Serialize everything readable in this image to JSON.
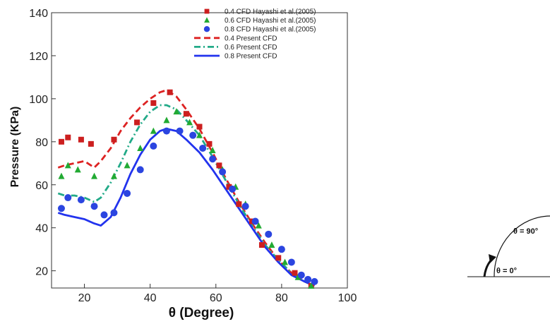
{
  "chart_data": {
    "type": "scatter",
    "xlabel": "θ (Degree)",
    "ylabel": "Pressure (KPa)",
    "xlim": [
      10,
      100
    ],
    "ylim": [
      12,
      140
    ],
    "xticks": [
      20,
      40,
      60,
      80,
      100
    ],
    "yticks": [
      20,
      40,
      60,
      80,
      100,
      120,
      140
    ],
    "grid": false,
    "legend_position": "top-right",
    "series": [
      {
        "name": "0.4 CFD Hayashi et al.(2005)",
        "kind": "markers",
        "marker": "square",
        "color": "#cc1f1f",
        "x": [
          13,
          15,
          19,
          22,
          29,
          36,
          41,
          46,
          51,
          55,
          58,
          61,
          64,
          67,
          71,
          74,
          79,
          84,
          89
        ],
        "y": [
          80,
          82,
          81,
          79,
          81,
          89,
          98,
          103,
          93,
          87,
          79,
          69,
          59,
          51,
          43,
          32,
          26,
          19,
          13
        ]
      },
      {
        "name": "0.6 CFD Hayashi et al.(2005)",
        "kind": "markers",
        "marker": "triangle",
        "color": "#22aa33",
        "x": [
          13,
          15,
          18,
          23,
          29,
          33,
          37,
          41,
          45,
          48,
          52,
          55,
          59,
          62,
          66,
          69,
          73,
          77,
          81,
          85,
          89
        ],
        "y": [
          64,
          69,
          67,
          64,
          64,
          69,
          77,
          85,
          90,
          94,
          89,
          83,
          76,
          67,
          59,
          51,
          41,
          32,
          24,
          17,
          13
        ]
      },
      {
        "name": "0.8 CFD Hayashi et al.(2005)",
        "kind": "markers",
        "marker": "circle",
        "color": "#2b45e0",
        "x": [
          13,
          15,
          19,
          23,
          26,
          29,
          33,
          37,
          41,
          45,
          49,
          53,
          56,
          59,
          62,
          65,
          69,
          72,
          76,
          80,
          83,
          86,
          88,
          90
        ],
        "y": [
          49,
          54,
          53,
          50,
          46,
          47,
          56,
          67,
          78,
          85,
          85,
          83,
          77,
          72,
          66,
          58,
          50,
          43,
          37,
          30,
          24,
          18,
          16,
          15
        ]
      },
      {
        "name": "0.4 Present CFD",
        "kind": "line",
        "dash": "dashed",
        "color": "#dd2222",
        "x": [
          12,
          14,
          17,
          20,
          23,
          25,
          28,
          31,
          34,
          37,
          40,
          43,
          45,
          48,
          51,
          55,
          59,
          63,
          67,
          71,
          75,
          79,
          83,
          87,
          90
        ],
        "y": [
          68,
          69,
          70,
          71,
          68,
          71,
          77,
          85,
          91,
          96,
          100,
          103,
          104,
          101,
          95,
          86,
          75,
          63,
          52,
          42,
          33,
          25,
          19,
          15,
          13
        ]
      },
      {
        "name": "0.6 Present CFD",
        "kind": "line",
        "dash": "dashdot",
        "color": "#22aa88",
        "x": [
          12,
          14,
          17,
          20,
          23,
          25,
          28,
          31,
          34,
          37,
          40,
          43,
          45,
          48,
          51,
          55,
          59,
          63,
          67,
          71,
          75,
          79,
          83,
          87,
          90
        ],
        "y": [
          56,
          55,
          55,
          54,
          52,
          54,
          61,
          70,
          80,
          88,
          94,
          97,
          97,
          95,
          90,
          83,
          73,
          62,
          51,
          41,
          32,
          25,
          19,
          15,
          13
        ]
      },
      {
        "name": "0.8 Present CFD",
        "kind": "line",
        "dash": "solid",
        "color": "#2233ee",
        "x": [
          12,
          14,
          17,
          20,
          23,
          25,
          28,
          31,
          34,
          37,
          40,
          43,
          45,
          48,
          51,
          55,
          59,
          63,
          67,
          71,
          75,
          79,
          83,
          87,
          90
        ],
        "y": [
          47,
          46,
          45,
          44,
          42,
          41,
          45,
          54,
          65,
          74,
          81,
          85,
          86,
          85,
          81,
          75,
          67,
          58,
          49,
          40,
          31,
          24,
          18,
          15,
          13
        ]
      }
    ]
  },
  "inset": {
    "label_top": "θ = 90°",
    "label_bottom": "θ = 0°"
  }
}
